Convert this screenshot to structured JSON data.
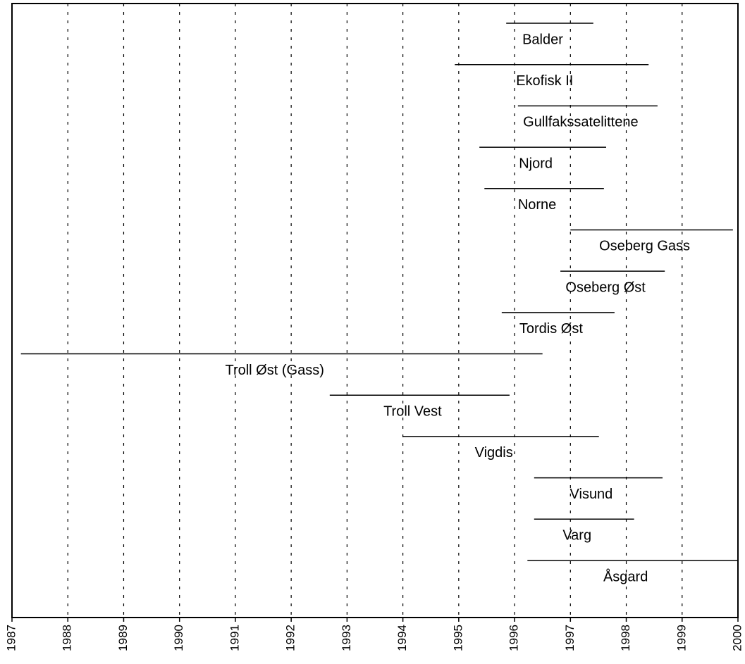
{
  "chart_data": {
    "type": "gantt",
    "tasks": [
      {
        "name": "Balder",
        "start": 1995.85,
        "end": 1997.41
      },
      {
        "name": "Ekofisk II",
        "start": 1994.93,
        "end": 1998.4
      },
      {
        "name": "Gullfakssatelittene",
        "start": 1996.06,
        "end": 1998.56
      },
      {
        "name": "Njord",
        "start": 1995.37,
        "end": 1997.64
      },
      {
        "name": "Norne",
        "start": 1995.46,
        "end": 1997.6
      },
      {
        "name": "Oseberg Gass",
        "start": 1997.0,
        "end": 1999.91
      },
      {
        "name": "Oseberg Øst",
        "start": 1996.82,
        "end": 1998.69
      },
      {
        "name": "Tordis Øst",
        "start": 1995.77,
        "end": 1997.79
      },
      {
        "name": "Troll Øst (Gass)",
        "start": 1987.16,
        "end": 1996.5
      },
      {
        "name": "Troll Vest",
        "start": 1992.69,
        "end": 1995.91
      },
      {
        "name": "Vigdis",
        "start": 1994.0,
        "end": 1997.51
      },
      {
        "name": "Visund",
        "start": 1996.35,
        "end": 1998.65
      },
      {
        "name": "Varg",
        "start": 1996.35,
        "end": 1998.14
      },
      {
        "name": "Åsgard",
        "start": 1996.23,
        "end": 2000
      }
    ],
    "color": "#000000",
    "xlim": [
      1987,
      2000
    ],
    "xticks": [
      1987,
      1988,
      1989,
      1990,
      1991,
      1992,
      1993,
      1994,
      1995,
      1996,
      1997,
      1998,
      1999,
      2000
    ],
    "grid": true
  }
}
